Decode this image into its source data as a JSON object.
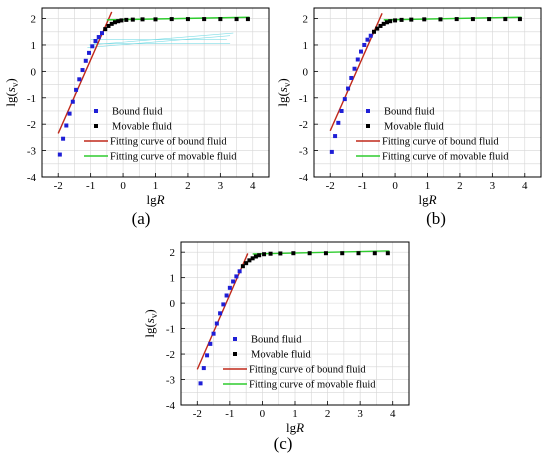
{
  "colors": {
    "bound_marker": "#1f1fd6",
    "movable_marker": "#000000",
    "bound_fit": "#c0281a",
    "movable_fit": "#2ecc2e",
    "grid": "#d6d6d6",
    "bounce_lines": "#7fdde6"
  },
  "chart_data": [
    {
      "type": "scatter",
      "panel_label": "(a)",
      "xlabel": "lgR",
      "ylabel": "lg(sv)",
      "xlim": [
        -2.5,
        4.5
      ],
      "ylim": [
        -4,
        2.4
      ],
      "xticks": [
        "-2",
        "-1",
        "0",
        "1",
        "2",
        "3",
        "4"
      ],
      "yticks": [
        "2",
        "1",
        "0",
        "-1",
        "-2",
        "-3",
        "-4"
      ],
      "grid": true,
      "legend_position": "bottom-right",
      "legend": [
        "Bound fluid",
        "Movable fluid",
        "Fitting curve of bound fluid",
        "Fitting curve of movable fluid"
      ],
      "series": [
        {
          "name": "Bound fluid",
          "kind": "points",
          "x": [
            -1.95,
            -1.85,
            -1.75,
            -1.65,
            -1.55,
            -1.45,
            -1.35,
            -1.25,
            -1.15,
            -1.05,
            -0.95,
            -0.85,
            -0.75,
            -0.65
          ],
          "y": [
            -3.15,
            -2.55,
            -2.05,
            -1.6,
            -1.15,
            -0.7,
            -0.3,
            0.05,
            0.4,
            0.7,
            0.95,
            1.15,
            1.3,
            1.45
          ]
        },
        {
          "name": "Movable fluid",
          "kind": "points",
          "x": [
            -0.55,
            -0.45,
            -0.35,
            -0.25,
            -0.15,
            -0.05,
            0.1,
            0.3,
            0.6,
            1.0,
            1.5,
            2.0,
            2.5,
            3.0,
            3.5,
            3.85
          ],
          "y": [
            1.6,
            1.72,
            1.8,
            1.86,
            1.9,
            1.93,
            1.95,
            1.96,
            1.97,
            1.97,
            1.98,
            1.98,
            1.98,
            1.98,
            1.98,
            1.98
          ]
        },
        {
          "name": "Fitting curve of bound fluid",
          "kind": "line",
          "x": [
            -2.0,
            -0.35
          ],
          "y": [
            -2.35,
            2.25
          ]
        },
        {
          "name": "Fitting curve of movable fluid",
          "kind": "line",
          "x": [
            -0.5,
            3.9
          ],
          "y": [
            1.95,
            2.05
          ]
        }
      ]
    },
    {
      "type": "scatter",
      "panel_label": "(b)",
      "xlabel": "lgR",
      "ylabel": "lg(sv)",
      "xlim": [
        -2.5,
        4.5
      ],
      "ylim": [
        -4,
        2.4
      ],
      "xticks": [
        "-2",
        "-1",
        "0",
        "1",
        "2",
        "3",
        "4"
      ],
      "yticks": [
        "2",
        "1",
        "0",
        "-1",
        "-2",
        "-3",
        "-4"
      ],
      "grid": true,
      "legend_position": "bottom-right",
      "legend": [
        "Bound fluid",
        "Movable fluid",
        "Fitting curve of bound fluid",
        "Fitting curve of movable fluid"
      ],
      "series": [
        {
          "name": "Bound fluid",
          "kind": "points",
          "x": [
            -1.95,
            -1.85,
            -1.75,
            -1.65,
            -1.55,
            -1.45,
            -1.35,
            -1.25,
            -1.15,
            -1.05,
            -0.95,
            -0.85,
            -0.75
          ],
          "y": [
            -3.05,
            -2.45,
            -1.95,
            -1.5,
            -1.05,
            -0.65,
            -0.25,
            0.1,
            0.45,
            0.75,
            1.0,
            1.2,
            1.35
          ]
        },
        {
          "name": "Movable fluid",
          "kind": "points",
          "x": [
            -0.65,
            -0.55,
            -0.45,
            -0.35,
            -0.25,
            -0.15,
            0.0,
            0.2,
            0.5,
            0.9,
            1.4,
            1.9,
            2.4,
            2.9,
            3.4,
            3.85
          ],
          "y": [
            1.5,
            1.62,
            1.72,
            1.8,
            1.86,
            1.9,
            1.93,
            1.95,
            1.96,
            1.97,
            1.97,
            1.98,
            1.98,
            1.98,
            1.98,
            1.98
          ]
        },
        {
          "name": "Fitting curve of bound fluid",
          "kind": "line",
          "x": [
            -2.0,
            -0.4
          ],
          "y": [
            -2.25,
            2.2
          ]
        },
        {
          "name": "Fitting curve of movable fluid",
          "kind": "line",
          "x": [
            -0.35,
            3.9
          ],
          "y": [
            1.95,
            2.05
          ]
        }
      ]
    },
    {
      "type": "scatter",
      "panel_label": "(c)",
      "xlabel": "lgR",
      "ylabel": "lg(sv)",
      "xlim": [
        -2.5,
        4.5
      ],
      "ylim": [
        -4,
        2.4
      ],
      "xticks": [
        "-2",
        "-1",
        "0",
        "1",
        "2",
        "3",
        "4"
      ],
      "yticks": [
        "2",
        "1",
        "0",
        "-1",
        "-2",
        "-3",
        "-4"
      ],
      "grid": true,
      "legend_position": "bottom-right",
      "legend": [
        "Bound fluid",
        "Movable fluid",
        "Fitting curve of bound fluid",
        "Fitting curve of movable fluid"
      ],
      "series": [
        {
          "name": "Bound fluid",
          "kind": "points",
          "x": [
            -1.9,
            -1.8,
            -1.7,
            -1.6,
            -1.5,
            -1.4,
            -1.3,
            -1.2,
            -1.1,
            -1.0,
            -0.9,
            -0.8,
            -0.7
          ],
          "y": [
            -3.15,
            -2.55,
            -2.05,
            -1.6,
            -1.2,
            -0.8,
            -0.4,
            -0.05,
            0.3,
            0.6,
            0.85,
            1.05,
            1.25
          ]
        },
        {
          "name": "Movable fluid",
          "kind": "points",
          "x": [
            -0.6,
            -0.5,
            -0.4,
            -0.3,
            -0.2,
            -0.1,
            0.05,
            0.25,
            0.55,
            0.95,
            1.45,
            1.95,
            2.45,
            2.95,
            3.45,
            3.85
          ],
          "y": [
            1.45,
            1.57,
            1.68,
            1.76,
            1.83,
            1.88,
            1.92,
            1.94,
            1.95,
            1.96,
            1.96,
            1.96,
            1.96,
            1.96,
            1.96,
            1.96
          ]
        },
        {
          "name": "Fitting curve of bound fluid",
          "kind": "line",
          "x": [
            -2.0,
            -0.45
          ],
          "y": [
            -2.6,
            1.95
          ]
        },
        {
          "name": "Fitting curve of movable fluid",
          "kind": "line",
          "x": [
            -0.3,
            3.9
          ],
          "y": [
            1.93,
            2.05
          ]
        }
      ]
    }
  ]
}
